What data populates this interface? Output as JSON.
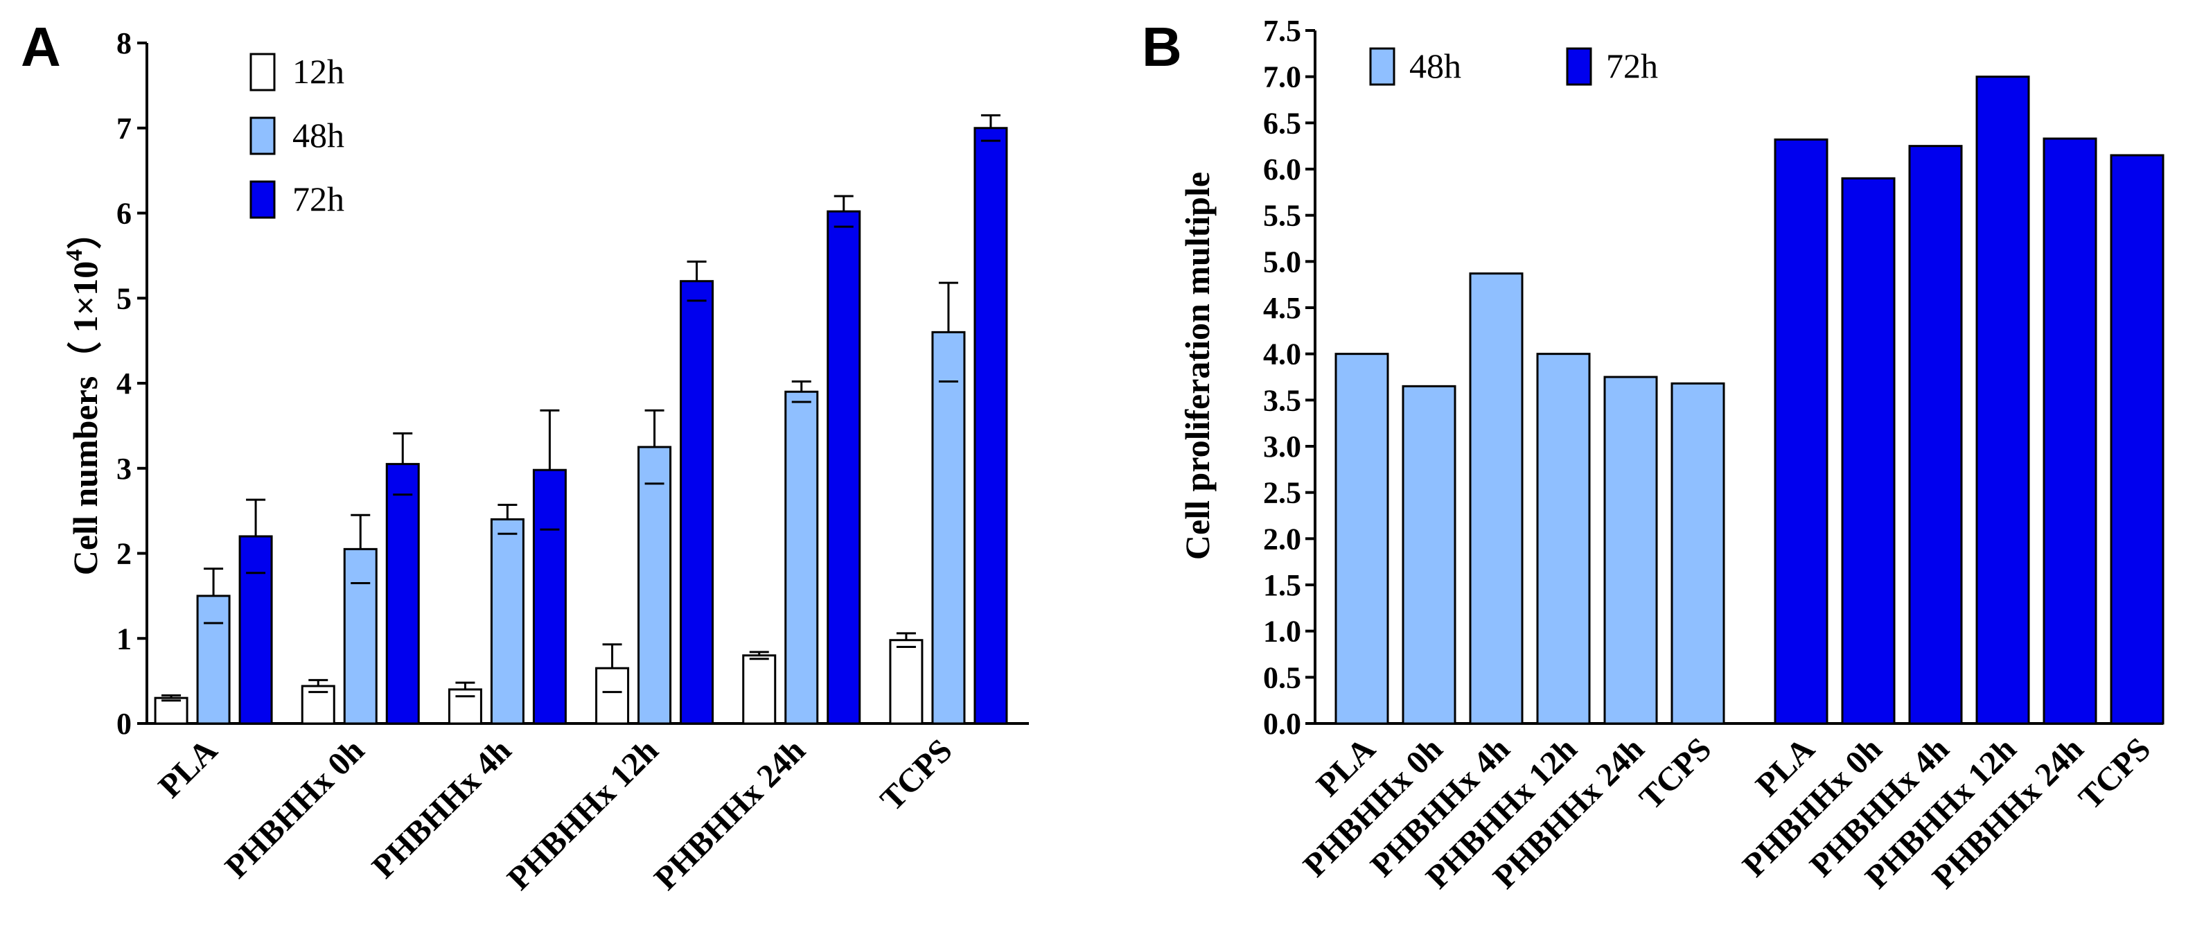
{
  "chart_data": [
    {
      "panel": "A",
      "type": "bar",
      "categories": [
        "PLA",
        "PHBHHx 0h",
        "PHBHHx 4h",
        "PHBHHx 12h",
        "PHBHHx 24h",
        "TCPS"
      ],
      "series": [
        {
          "name": "12h",
          "color": "#ffffff",
          "values": [
            0.3,
            0.44,
            0.4,
            0.65,
            0.8,
            0.98
          ],
          "errors": [
            0.03,
            0.07,
            0.08,
            0.28,
            0.04,
            0.08
          ]
        },
        {
          "name": "48h",
          "color": "#8fbfff",
          "values": [
            1.5,
            2.05,
            2.4,
            3.25,
            3.9,
            4.6
          ],
          "errors": [
            0.32,
            0.4,
            0.17,
            0.43,
            0.12,
            0.58
          ]
        },
        {
          "name": "72h",
          "color": "#0000ee",
          "values": [
            2.2,
            3.05,
            2.98,
            5.2,
            6.02,
            7.0
          ],
          "errors": [
            0.43,
            0.36,
            0.7,
            0.23,
            0.18,
            0.15
          ]
        }
      ],
      "ylabel_main": "Cell numbers",
      "ylabel_unit_prefix": "（ 1×10",
      "ylabel_unit_exp": "4",
      "ylabel_unit_suffix": "）",
      "ylim": [
        0,
        8
      ],
      "yticks": [
        "0",
        "1",
        "2",
        "3",
        "4",
        "5",
        "6",
        "7",
        "8"
      ],
      "legend": "top-left"
    },
    {
      "panel": "B",
      "type": "bar",
      "groups": [
        {
          "name": "48h",
          "color": "#8fbfff",
          "categories": [
            "PLA",
            "PHBHHx 0h",
            "PHBHHx 4h",
            "PHBHHx 12h",
            "PHBHHx 24h",
            "TCPS"
          ],
          "values": [
            4.0,
            3.65,
            4.87,
            4.0,
            3.75,
            3.68
          ]
        },
        {
          "name": "72h",
          "color": "#0000ee",
          "categories": [
            "PLA",
            "PHBHHx 0h",
            "PHBHHx 4h",
            "PHBHHx 12h",
            "PHBHHx 24h",
            "TCPS"
          ],
          "values": [
            6.32,
            5.9,
            6.25,
            7.0,
            6.33,
            6.15
          ]
        }
      ],
      "ylabel": "Cell proliferation multiple",
      "ylim": [
        0,
        7.5
      ],
      "yticks": [
        "0.0",
        "0.5",
        "1.0",
        "1.5",
        "2.0",
        "2.5",
        "3.0",
        "3.5",
        "4.0",
        "4.5",
        "5.0",
        "5.5",
        "6.0",
        "6.5",
        "7.0",
        "7.5"
      ],
      "legend": "top-left"
    }
  ]
}
